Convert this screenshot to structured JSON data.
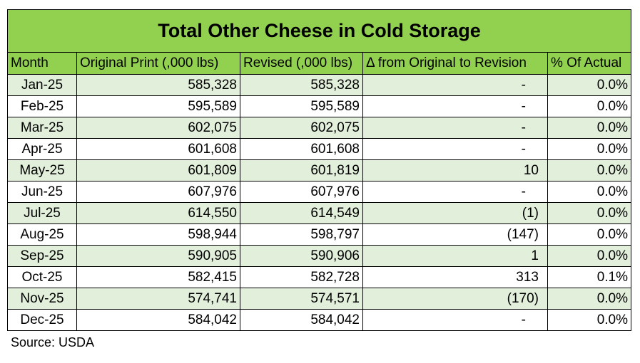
{
  "chart_data": {
    "type": "table",
    "title": "Total Other Cheese in Cold Storage",
    "columns": [
      "Month",
      "Original Print (,000 lbs)",
      "Revised (,000 lbs)",
      "Δ from Original to Revision",
      "% Of Actual"
    ],
    "rows": [
      {
        "month": "Jan-25",
        "original": "585,328",
        "revised": "585,328",
        "delta": "-",
        "pct": "0.0%"
      },
      {
        "month": "Feb-25",
        "original": "595,589",
        "revised": "595,589",
        "delta": "-",
        "pct": "0.0%"
      },
      {
        "month": "Mar-25",
        "original": "602,075",
        "revised": "602,075",
        "delta": "-",
        "pct": "0.0%"
      },
      {
        "month": "Apr-25",
        "original": "601,608",
        "revised": "601,608",
        "delta": "-",
        "pct": "0.0%"
      },
      {
        "month": "May-25",
        "original": "601,809",
        "revised": "601,819",
        "delta": "10",
        "pct": "0.0%"
      },
      {
        "month": "Jun-25",
        "original": "607,976",
        "revised": "607,976",
        "delta": "-",
        "pct": "0.0%"
      },
      {
        "month": "Jul-25",
        "original": "614,550",
        "revised": "614,549",
        "delta": "(1)",
        "pct": "0.0%"
      },
      {
        "month": "Aug-25",
        "original": "598,944",
        "revised": "598,797",
        "delta": "(147)",
        "pct": "0.0%"
      },
      {
        "month": "Sep-25",
        "original": "590,905",
        "revised": "590,906",
        "delta": "1",
        "pct": "0.0%"
      },
      {
        "month": "Oct-25",
        "original": "582,415",
        "revised": "582,728",
        "delta": "313",
        "pct": "0.1%"
      },
      {
        "month": "Nov-25",
        "original": "574,741",
        "revised": "574,571",
        "delta": "(170)",
        "pct": "0.0%"
      },
      {
        "month": "Dec-25",
        "original": "584,042",
        "revised": "584,042",
        "delta": "-",
        "pct": "0.0%"
      }
    ]
  },
  "source": "Source:  USDA",
  "colors": {
    "header": "#92d050",
    "shade": "#e2efda"
  }
}
